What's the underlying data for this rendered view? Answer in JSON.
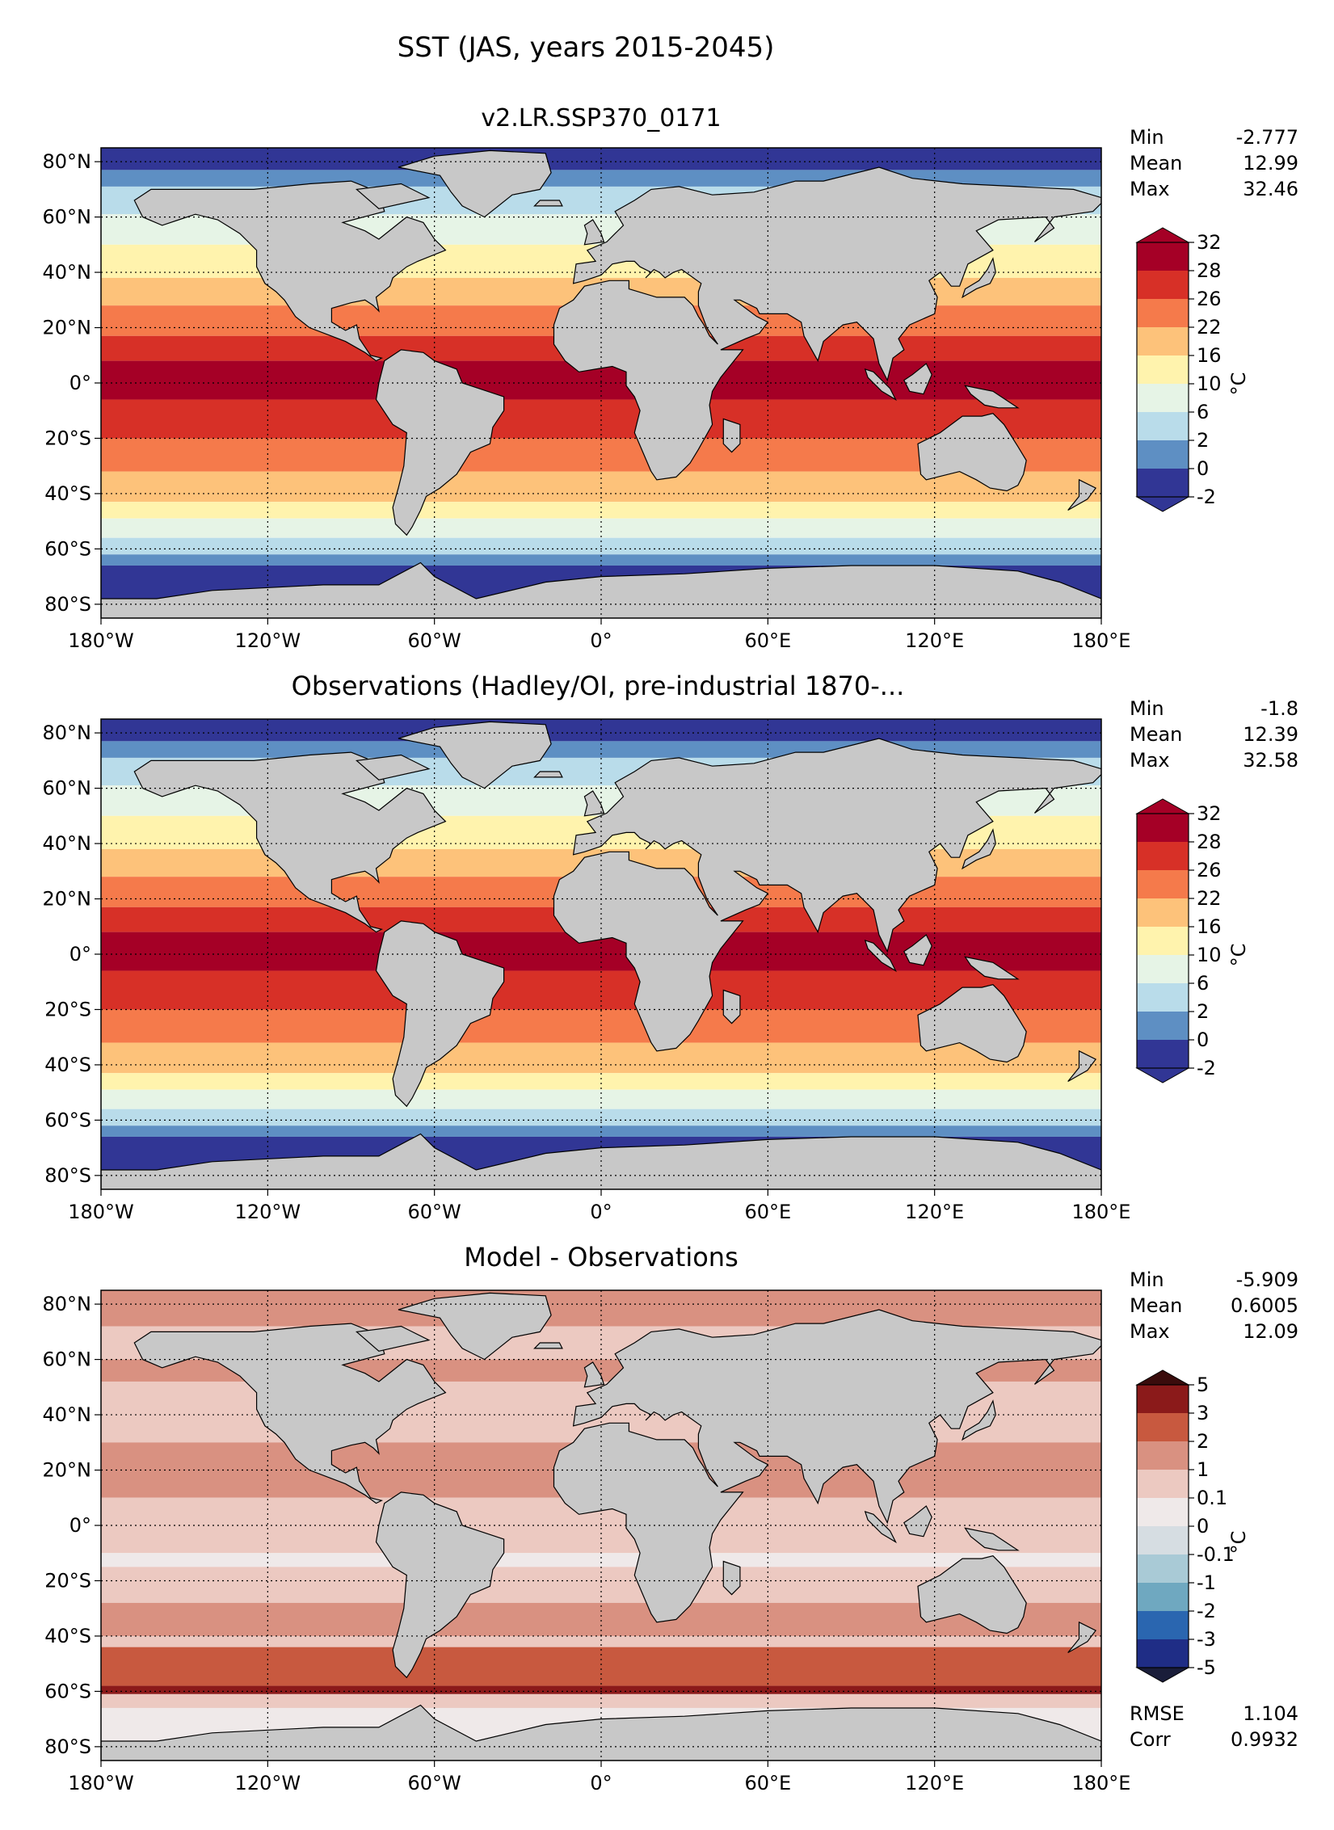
{
  "title": "SST (JAS, years 2015-2045)",
  "units": "°C",
  "lon_ticks": [
    "180°W",
    "120°W",
    "60°W",
    "0°",
    "60°E",
    "120°E",
    "180°E"
  ],
  "lat_ticks": [
    "80°N",
    "60°N",
    "40°N",
    "20°N",
    "0°",
    "20°S",
    "40°S",
    "60°S",
    "80°S"
  ],
  "colors": {
    "land": "#c8c8c8",
    "sst_levels": [
      "#313695",
      "#5e8fc3",
      "#b9dcea",
      "#e6f4e6",
      "#fff3ad",
      "#fdc27a",
      "#f57a4b",
      "#d73027",
      "#a50026"
    ],
    "diff_levels": [
      "#1f2d86",
      "#2a66b0",
      "#6fa8c0",
      "#a9cad6",
      "#d6dde2",
      "#efe9e9",
      "#ecc9c1",
      "#d99181",
      "#c8593f",
      "#8b1a1a"
    ]
  },
  "chart_data": [
    {
      "type": "heatmap",
      "title": "v2.LR.SSP370_0171",
      "stats": [
        {
          "label": "Min",
          "value": "-2.777"
        },
        {
          "label": "Mean",
          "value": "12.99"
        },
        {
          "label": "Max",
          "value": "32.46"
        }
      ],
      "colorbar_ticks": [
        "32",
        "28",
        "26",
        "22",
        "16",
        "10",
        "6",
        "2",
        "0",
        "-2"
      ],
      "levels": [
        -2,
        0,
        2,
        6,
        10,
        16,
        22,
        26,
        28,
        32
      ],
      "xlim": [
        -180,
        180
      ],
      "ylim": [
        -85,
        85
      ],
      "field": "sst",
      "grid": true
    },
    {
      "type": "heatmap",
      "title": "Observations (Hadley/OI, pre-industrial 1870-...",
      "stats": [
        {
          "label": "Min",
          "value": "-1.8"
        },
        {
          "label": "Mean",
          "value": "12.39"
        },
        {
          "label": "Max",
          "value": "32.58"
        }
      ],
      "colorbar_ticks": [
        "32",
        "28",
        "26",
        "22",
        "16",
        "10",
        "6",
        "2",
        "0",
        "-2"
      ],
      "levels": [
        -2,
        0,
        2,
        6,
        10,
        16,
        22,
        26,
        28,
        32
      ],
      "xlim": [
        -180,
        180
      ],
      "ylim": [
        -85,
        85
      ],
      "field": "sst",
      "grid": true
    },
    {
      "type": "heatmap",
      "title": "Model - Observations",
      "stats": [
        {
          "label": "Min",
          "value": "-5.909"
        },
        {
          "label": "Mean",
          "value": "0.6005"
        },
        {
          "label": "Max",
          "value": "12.09"
        }
      ],
      "extra_stats": [
        {
          "label": "RMSE",
          "value": "1.104"
        },
        {
          "label": "Corr",
          "value": "0.9932"
        }
      ],
      "colorbar_ticks": [
        "5",
        "3",
        "2",
        "1",
        "0.1",
        "0",
        "-0.1",
        "-1",
        "-2",
        "-3",
        "-5"
      ],
      "levels": [
        -5,
        -3,
        -2,
        -1,
        -0.1,
        0,
        0.1,
        1,
        2,
        3,
        5
      ],
      "xlim": [
        -180,
        180
      ],
      "ylim": [
        -85,
        85
      ],
      "field": "diff",
      "grid": true
    }
  ]
}
